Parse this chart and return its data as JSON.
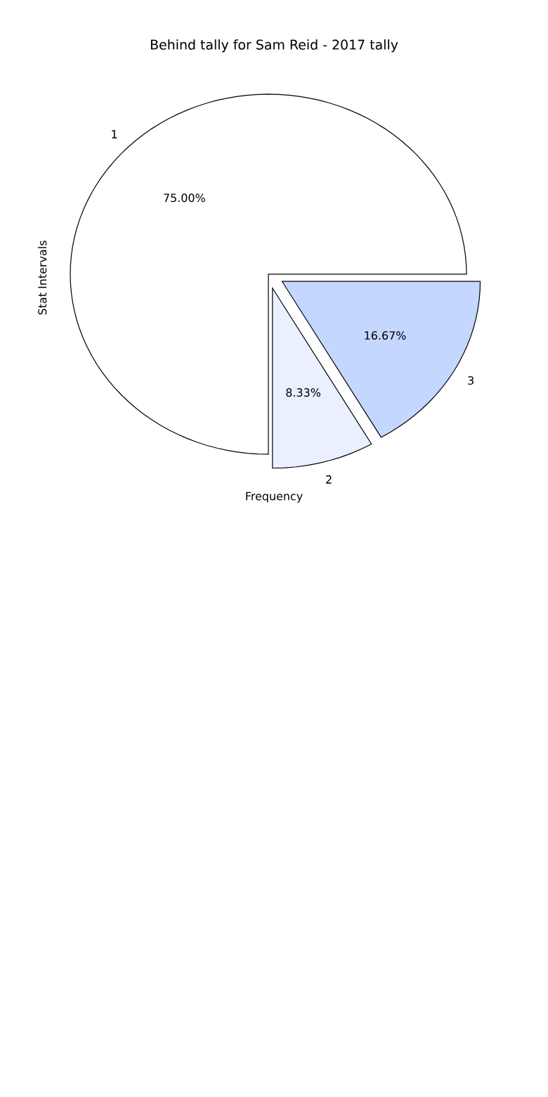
{
  "chart_data": {
    "type": "pie",
    "title": "Behind tally for Sam Reid - 2017 tally",
    "xlabel": "Frequency",
    "ylabel": "Stat Intervals",
    "categories": [
      "1",
      "2",
      "3"
    ],
    "values": [
      75,
      8.33,
      16.67
    ],
    "colors": [
      "#ffffff",
      "#eaf0ff",
      "#c4d7ff"
    ],
    "value_labels": [
      "75.00%",
      "8.33%",
      "16.67%"
    ]
  }
}
